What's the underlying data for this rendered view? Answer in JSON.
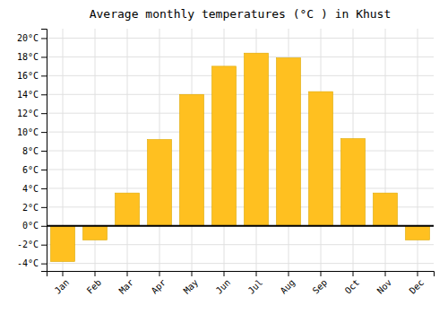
{
  "chart_data": {
    "type": "bar",
    "title": "Average monthly temperatures (°C ) in Khust",
    "categories": [
      "Jan",
      "Feb",
      "Mar",
      "Apr",
      "May",
      "Jun",
      "Jul",
      "Aug",
      "Sep",
      "Oct",
      "Nov",
      "Dec"
    ],
    "values": [
      -3.8,
      -1.5,
      3.5,
      9.2,
      14.0,
      17.0,
      18.4,
      17.9,
      14.3,
      9.3,
      3.5,
      -1.5
    ],
    "color": "#FFC020",
    "ylim": [
      -4.8,
      21
    ],
    "yticks": [
      {
        "value": -4,
        "label": "-4°C"
      },
      {
        "value": -2,
        "label": "-2°C"
      },
      {
        "value": 0,
        "label": "0°C"
      },
      {
        "value": 2,
        "label": "2°C"
      },
      {
        "value": 4,
        "label": "4°C"
      },
      {
        "value": 6,
        "label": "6°C"
      },
      {
        "value": 8,
        "label": "8°C"
      },
      {
        "value": 10,
        "label": "10°C"
      },
      {
        "value": 12,
        "label": "12°C"
      },
      {
        "value": 14,
        "label": "14°C"
      },
      {
        "value": 16,
        "label": "16°C"
      },
      {
        "value": 18,
        "label": "18°C"
      },
      {
        "value": 20,
        "label": "20°C"
      }
    ],
    "grid": true
  }
}
